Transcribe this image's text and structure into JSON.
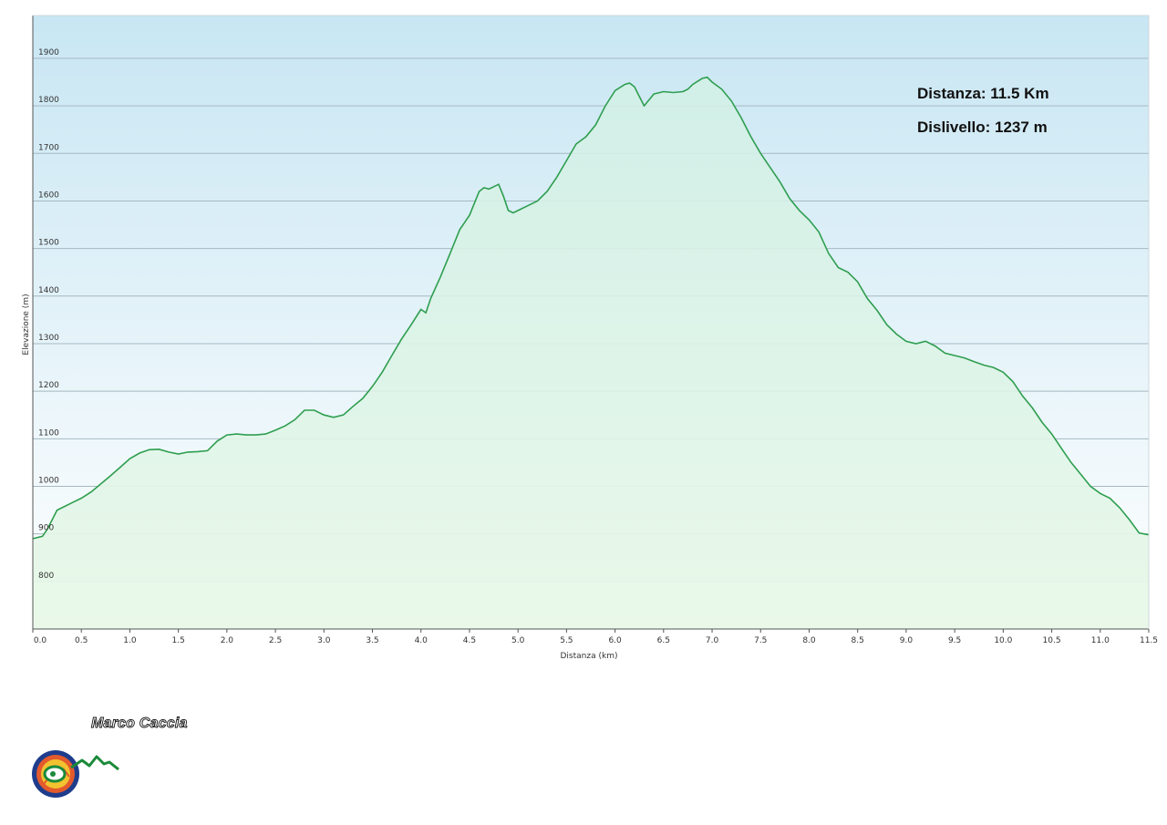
{
  "chart_data": {
    "type": "area",
    "xlabel": "Distanza  (km)",
    "ylabel": "Elevazione (m)",
    "xlim": [
      0,
      11.5
    ],
    "ylim": [
      700,
      1990
    ],
    "x_ticks": [
      "0.0",
      "0.5",
      "1.0",
      "1.5",
      "2.0",
      "2.5",
      "3.0",
      "3.5",
      "4.0",
      "4.5",
      "5.0",
      "5.5",
      "6.0",
      "6.5",
      "7.0",
      "7.5",
      "8.0",
      "8.5",
      "9.0",
      "9.5",
      "10.0",
      "10.5",
      "11.0",
      "11.5"
    ],
    "y_ticks": [
      "800",
      "900",
      "1000",
      "1100",
      "1200",
      "1300",
      "1400",
      "1500",
      "1600",
      "1700",
      "1800",
      "1900"
    ],
    "grid": true,
    "annotations": [
      "Distanza: 11.5 Km",
      "Dislivello: 1237 m"
    ],
    "line_color": "#2e9e4f",
    "series": [
      {
        "x": [
          0.0,
          0.1,
          0.15,
          0.25,
          0.3,
          0.4,
          0.5,
          0.6,
          0.7,
          0.8,
          0.9,
          1.0,
          1.1,
          1.2,
          1.3,
          1.4,
          1.5,
          1.6,
          1.7,
          1.8,
          1.9,
          2.0,
          2.1,
          2.2,
          2.3,
          2.4,
          2.5,
          2.6,
          2.7,
          2.8,
          2.9,
          3.0,
          3.1,
          3.2,
          3.3,
          3.4,
          3.5,
          3.6,
          3.7,
          3.8,
          3.9,
          4.0,
          4.05,
          4.1,
          4.2,
          4.3,
          4.4,
          4.5,
          4.6,
          4.65,
          4.7,
          4.75,
          4.8,
          4.85,
          4.9,
          4.95,
          5.0,
          5.1,
          5.2,
          5.3,
          5.4,
          5.5,
          5.6,
          5.7,
          5.8,
          5.9,
          6.0,
          6.1,
          6.15,
          6.2,
          6.25,
          6.3,
          6.4,
          6.5,
          6.6,
          6.7,
          6.75,
          6.8,
          6.9,
          6.95,
          7.0,
          7.1,
          7.2,
          7.3,
          7.4,
          7.5,
          7.6,
          7.7,
          7.8,
          7.9,
          8.0,
          8.1,
          8.2,
          8.3,
          8.4,
          8.5,
          8.6,
          8.7,
          8.8,
          8.9,
          9.0,
          9.1,
          9.2,
          9.3,
          9.4,
          9.5,
          9.6,
          9.7,
          9.8,
          9.9,
          10.0,
          10.1,
          10.2,
          10.3,
          10.4,
          10.5,
          10.6,
          10.7,
          10.8,
          10.9,
          11.0,
          11.1,
          11.2,
          11.3,
          11.4,
          11.5
        ],
        "y": [
          890,
          895,
          910,
          950,
          955,
          965,
          975,
          988,
          1005,
          1022,
          1040,
          1058,
          1070,
          1077,
          1078,
          1072,
          1068,
          1072,
          1073,
          1075,
          1095,
          1108,
          1110,
          1108,
          1108,
          1110,
          1118,
          1127,
          1140,
          1160,
          1160,
          1150,
          1145,
          1150,
          1168,
          1185,
          1210,
          1240,
          1275,
          1310,
          1340,
          1372,
          1365,
          1395,
          1440,
          1490,
          1540,
          1570,
          1620,
          1628,
          1625,
          1630,
          1635,
          1610,
          1580,
          1575,
          1580,
          1590,
          1600,
          1620,
          1650,
          1685,
          1720,
          1735,
          1760,
          1800,
          1832,
          1845,
          1848,
          1840,
          1820,
          1800,
          1825,
          1830,
          1828,
          1830,
          1835,
          1845,
          1858,
          1860,
          1850,
          1835,
          1810,
          1775,
          1735,
          1700,
          1670,
          1640,
          1605,
          1580,
          1560,
          1535,
          1490,
          1460,
          1450,
          1430,
          1395,
          1370,
          1340,
          1320,
          1305,
          1300,
          1305,
          1295,
          1280,
          1275,
          1270,
          1262,
          1255,
          1250,
          1240,
          1220,
          1190,
          1165,
          1135,
          1110,
          1080,
          1050,
          1025,
          1000,
          985,
          975,
          955,
          930,
          902,
          898
        ]
      }
    ]
  },
  "author": "Marco Caccia",
  "colors": {
    "sky_top": "#c8e6f3",
    "sky_bottom": "#ffffff",
    "fill_top": "#d6f3e6",
    "fill_bottom": "#eaf9ea",
    "gridline": "#a6b8c2"
  }
}
